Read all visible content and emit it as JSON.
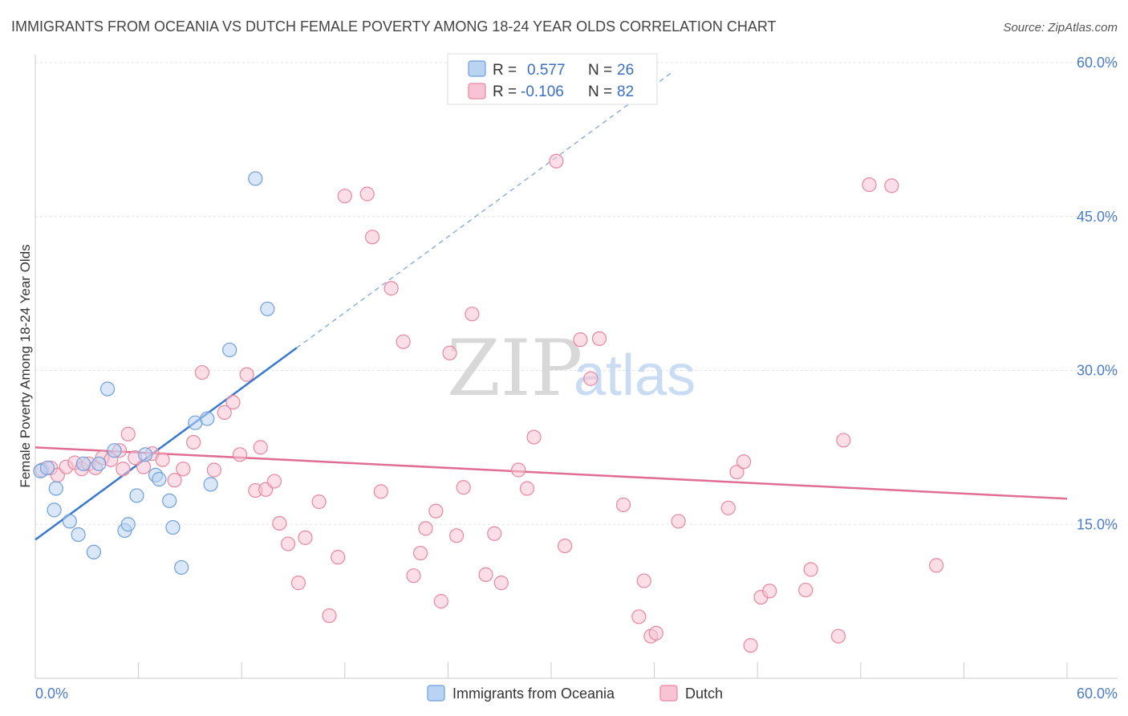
{
  "chart_data": {
    "type": "scatter",
    "title": "IMMIGRANTS FROM OCEANIA VS DUTCH FEMALE POVERTY AMONG 18-24 YEAR OLDS CORRELATION CHART",
    "source": "Source: ZipAtlas.com",
    "watermark": {
      "zip": "ZIP",
      "atlas": "atlas"
    },
    "ylabel": "Female Poverty Among 18-24 Year Olds",
    "xlim": [
      0,
      60
    ],
    "ylim": [
      0,
      60
    ],
    "x_tick_labels": {
      "min": "0.0%",
      "max": "60.0%"
    },
    "y_ticks": [
      {
        "value": 15,
        "label": "15.0%"
      },
      {
        "value": 30,
        "label": "30.0%"
      },
      {
        "value": 45,
        "label": "45.0%"
      },
      {
        "value": 60,
        "label": "60.0%"
      }
    ],
    "legend": {
      "r_label": "R =",
      "n_label": "N =",
      "entries": [
        {
          "r": "0.577",
          "n": "26"
        },
        {
          "r": "-0.106",
          "n": "82"
        }
      ]
    },
    "series": [
      {
        "name": "Immigrants from Oceania",
        "color_fill": "#b9d3f3",
        "color_stroke": "#6f9fdc",
        "trend": {
          "x0": 0,
          "y0": 13.5,
          "x1": 15.2,
          "y1": 32.2,
          "dash_to_x": 37
        },
        "points": [
          [
            0.3,
            20.2
          ],
          [
            0.7,
            20.5
          ],
          [
            1.2,
            18.5
          ],
          [
            1.1,
            16.4
          ],
          [
            2.0,
            15.3
          ],
          [
            2.5,
            14.0
          ],
          [
            2.8,
            20.9
          ],
          [
            3.4,
            12.3
          ],
          [
            3.7,
            20.9
          ],
          [
            4.2,
            28.2
          ],
          [
            4.6,
            22.2
          ],
          [
            5.2,
            14.4
          ],
          [
            5.4,
            15.0
          ],
          [
            5.9,
            17.8
          ],
          [
            6.4,
            21.8
          ],
          [
            7.0,
            19.8
          ],
          [
            7.2,
            19.4
          ],
          [
            7.8,
            17.3
          ],
          [
            8.0,
            14.7
          ],
          [
            8.5,
            10.8
          ],
          [
            9.3,
            24.9
          ],
          [
            10.0,
            25.3
          ],
          [
            10.2,
            18.9
          ],
          [
            11.3,
            32.0
          ],
          [
            12.8,
            48.7
          ],
          [
            13.5,
            36.0
          ]
        ]
      },
      {
        "name": "Dutch",
        "color_fill": "#f8c3d4",
        "color_stroke": "#e8879f",
        "trend": {
          "x0": 0,
          "y0": 22.5,
          "x1": 60,
          "y1": 17.5
        },
        "points": [
          [
            0.4,
            20.3
          ],
          [
            0.9,
            20.5
          ],
          [
            1.3,
            19.8
          ],
          [
            1.8,
            20.6
          ],
          [
            2.3,
            21.0
          ],
          [
            2.7,
            20.4
          ],
          [
            3.1,
            20.9
          ],
          [
            3.5,
            20.5
          ],
          [
            3.9,
            21.5
          ],
          [
            4.4,
            21.3
          ],
          [
            4.9,
            22.2
          ],
          [
            5.4,
            23.8
          ],
          [
            5.8,
            21.5
          ],
          [
            6.3,
            20.6
          ],
          [
            6.8,
            21.9
          ],
          [
            7.4,
            21.3
          ],
          [
            8.1,
            19.3
          ],
          [
            8.6,
            20.4
          ],
          [
            9.2,
            23.0
          ],
          [
            9.7,
            29.8
          ],
          [
            10.4,
            20.3
          ],
          [
            11.0,
            25.9
          ],
          [
            11.5,
            26.9
          ],
          [
            11.9,
            21.8
          ],
          [
            12.3,
            29.6
          ],
          [
            12.8,
            18.3
          ],
          [
            13.4,
            18.4
          ],
          [
            13.9,
            19.2
          ],
          [
            14.2,
            15.1
          ],
          [
            14.7,
            13.1
          ],
          [
            15.3,
            9.3
          ],
          [
            15.7,
            13.7
          ],
          [
            16.5,
            17.2
          ],
          [
            17.1,
            6.1
          ],
          [
            17.6,
            11.8
          ],
          [
            18.0,
            47.0
          ],
          [
            19.3,
            47.2
          ],
          [
            19.6,
            43.0
          ],
          [
            20.1,
            18.2
          ],
          [
            20.7,
            38.0
          ],
          [
            21.4,
            32.8
          ],
          [
            22.0,
            10.0
          ],
          [
            22.4,
            12.2
          ],
          [
            22.7,
            14.6
          ],
          [
            23.3,
            16.3
          ],
          [
            23.6,
            7.5
          ],
          [
            24.1,
            31.7
          ],
          [
            24.5,
            13.9
          ],
          [
            24.9,
            18.6
          ],
          [
            25.4,
            35.5
          ],
          [
            26.2,
            10.1
          ],
          [
            26.7,
            14.1
          ],
          [
            27.1,
            9.3
          ],
          [
            28.1,
            20.3
          ],
          [
            28.6,
            18.5
          ],
          [
            29.0,
            23.5
          ],
          [
            30.3,
            50.4
          ],
          [
            30.8,
            12.9
          ],
          [
            31.7,
            33.0
          ],
          [
            32.3,
            29.2
          ],
          [
            32.8,
            33.1
          ],
          [
            34.2,
            16.9
          ],
          [
            35.1,
            6.0
          ],
          [
            35.4,
            9.5
          ],
          [
            35.8,
            4.1
          ],
          [
            36.1,
            4.4
          ],
          [
            37.4,
            15.3
          ],
          [
            40.3,
            16.6
          ],
          [
            40.8,
            20.1
          ],
          [
            41.2,
            21.1
          ],
          [
            41.6,
            3.2
          ],
          [
            42.2,
            7.9
          ],
          [
            42.7,
            8.5
          ],
          [
            44.8,
            8.6
          ],
          [
            45.1,
            10.6
          ],
          [
            46.7,
            4.1
          ],
          [
            47.0,
            23.2
          ],
          [
            48.5,
            48.1
          ],
          [
            49.8,
            48.0
          ],
          [
            52.4,
            11.0
          ],
          [
            13.1,
            22.5
          ],
          [
            5.1,
            20.4
          ]
        ]
      }
    ]
  }
}
